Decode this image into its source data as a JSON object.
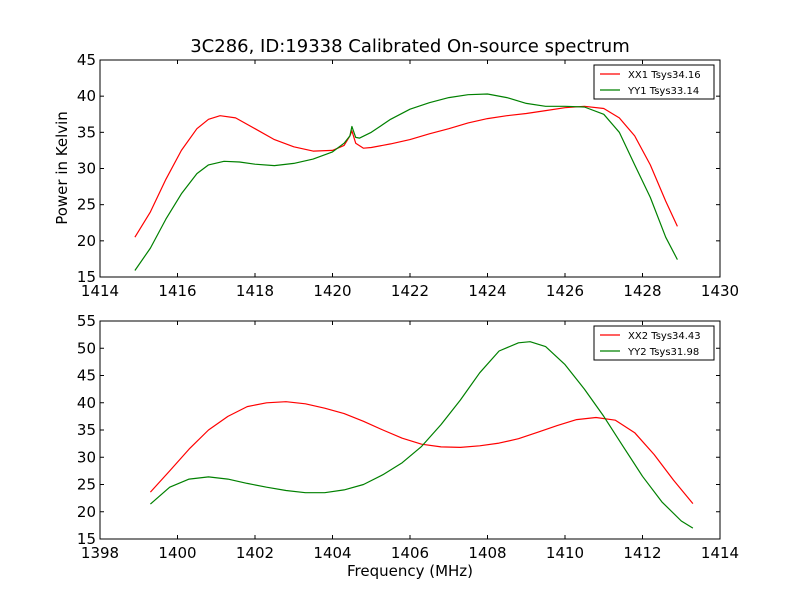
{
  "figure": {
    "title": "3C286, ID:19338 Calibrated On-source spectrum",
    "ylabel": "Power in Kelvin",
    "xlabel": "Frequency (MHz)"
  },
  "colors": {
    "red": "#ff0000",
    "green": "#008000"
  },
  "chart_data": [
    {
      "type": "line",
      "title": "3C286, ID:19338 Calibrated On-source spectrum",
      "xlabel": "",
      "ylabel": "Power in Kelvin",
      "xlim": [
        1414,
        1430
      ],
      "ylim": [
        15,
        45
      ],
      "xticks": [
        1414,
        1416,
        1418,
        1420,
        1422,
        1424,
        1426,
        1428,
        1430
      ],
      "yticks": [
        15,
        20,
        25,
        30,
        35,
        40,
        45
      ],
      "grid": false,
      "legend": "top-right",
      "series": [
        {
          "name": "XX1 Tsys34.16",
          "color": "red",
          "x": [
            1414.9,
            1415.3,
            1415.7,
            1416.1,
            1416.5,
            1416.8,
            1417.1,
            1417.5,
            1418.0,
            1418.5,
            1419.0,
            1419.5,
            1420.0,
            1420.3,
            1420.45,
            1420.5,
            1420.6,
            1420.8,
            1421.0,
            1421.5,
            1422.0,
            1422.5,
            1423.0,
            1423.5,
            1424.0,
            1424.5,
            1425.0,
            1425.5,
            1426.0,
            1426.5,
            1427.0,
            1427.4,
            1427.8,
            1428.2,
            1428.6,
            1428.9
          ],
          "y": [
            20.5,
            24.0,
            28.5,
            32.5,
            35.5,
            36.8,
            37.3,
            37.0,
            35.5,
            34.0,
            33.0,
            32.4,
            32.5,
            33.2,
            34.5,
            35.2,
            33.5,
            32.8,
            32.9,
            33.4,
            34.0,
            34.8,
            35.5,
            36.3,
            36.9,
            37.3,
            37.6,
            38.0,
            38.4,
            38.6,
            38.3,
            37.0,
            34.5,
            30.5,
            25.5,
            22.0
          ]
        },
        {
          "name": "YY1 Tsys33.14",
          "color": "green",
          "x": [
            1414.9,
            1415.3,
            1415.7,
            1416.1,
            1416.5,
            1416.8,
            1417.2,
            1417.6,
            1418.0,
            1418.5,
            1419.0,
            1419.5,
            1420.0,
            1420.3,
            1420.45,
            1420.5,
            1420.6,
            1420.7,
            1421.0,
            1421.5,
            1422.0,
            1422.5,
            1423.0,
            1423.5,
            1424.0,
            1424.5,
            1425.0,
            1425.5,
            1426.0,
            1426.5,
            1427.0,
            1427.4,
            1427.8,
            1428.2,
            1428.6,
            1428.9
          ],
          "y": [
            15.9,
            19.0,
            23.0,
            26.5,
            29.3,
            30.5,
            31.0,
            30.9,
            30.6,
            30.4,
            30.7,
            31.3,
            32.3,
            33.5,
            34.5,
            35.8,
            34.3,
            34.2,
            35.0,
            36.8,
            38.2,
            39.1,
            39.8,
            40.2,
            40.3,
            39.8,
            39.0,
            38.6,
            38.6,
            38.5,
            37.5,
            35.0,
            30.5,
            26.0,
            20.5,
            17.4
          ]
        }
      ]
    },
    {
      "type": "line",
      "title": "",
      "xlabel": "Frequency (MHz)",
      "ylabel": "",
      "xlim": [
        1398,
        1414
      ],
      "ylim": [
        15,
        55
      ],
      "xticks": [
        1398,
        1400,
        1402,
        1404,
        1406,
        1408,
        1410,
        1412,
        1414
      ],
      "yticks": [
        15,
        20,
        25,
        30,
        35,
        40,
        45,
        50,
        55
      ],
      "grid": false,
      "legend": "top-right",
      "series": [
        {
          "name": "XX2 Tsys34.43",
          "color": "red",
          "x": [
            1399.3,
            1399.8,
            1400.3,
            1400.8,
            1401.3,
            1401.8,
            1402.3,
            1402.8,
            1403.3,
            1403.8,
            1404.3,
            1404.8,
            1405.3,
            1405.8,
            1406.3,
            1406.8,
            1407.3,
            1407.8,
            1408.3,
            1408.8,
            1409.3,
            1409.8,
            1410.3,
            1410.8,
            1411.3,
            1411.8,
            1412.3,
            1412.8,
            1413.3
          ],
          "y": [
            23.6,
            27.5,
            31.5,
            35.0,
            37.5,
            39.3,
            40.0,
            40.2,
            39.8,
            39.0,
            38.0,
            36.6,
            35.0,
            33.5,
            32.4,
            31.9,
            31.8,
            32.1,
            32.6,
            33.4,
            34.6,
            35.8,
            36.9,
            37.3,
            36.8,
            34.5,
            30.5,
            25.8,
            21.5
          ]
        },
        {
          "name": "YY2 Tsys31.98",
          "color": "green",
          "x": [
            1399.3,
            1399.8,
            1400.3,
            1400.8,
            1401.3,
            1401.8,
            1402.3,
            1402.8,
            1403.3,
            1403.8,
            1404.3,
            1404.8,
            1405.3,
            1405.8,
            1406.3,
            1406.8,
            1407.3,
            1407.8,
            1408.3,
            1408.8,
            1409.1,
            1409.5,
            1410.0,
            1410.5,
            1411.0,
            1411.5,
            1412.0,
            1412.5,
            1413.0,
            1413.3
          ],
          "y": [
            21.4,
            24.5,
            26.0,
            26.4,
            26.0,
            25.2,
            24.5,
            23.9,
            23.5,
            23.5,
            24.0,
            25.0,
            26.8,
            29.0,
            32.0,
            36.0,
            40.5,
            45.5,
            49.5,
            51.0,
            51.2,
            50.3,
            47.0,
            42.5,
            37.5,
            32.0,
            26.5,
            21.8,
            18.3,
            17.0
          ]
        }
      ]
    }
  ]
}
